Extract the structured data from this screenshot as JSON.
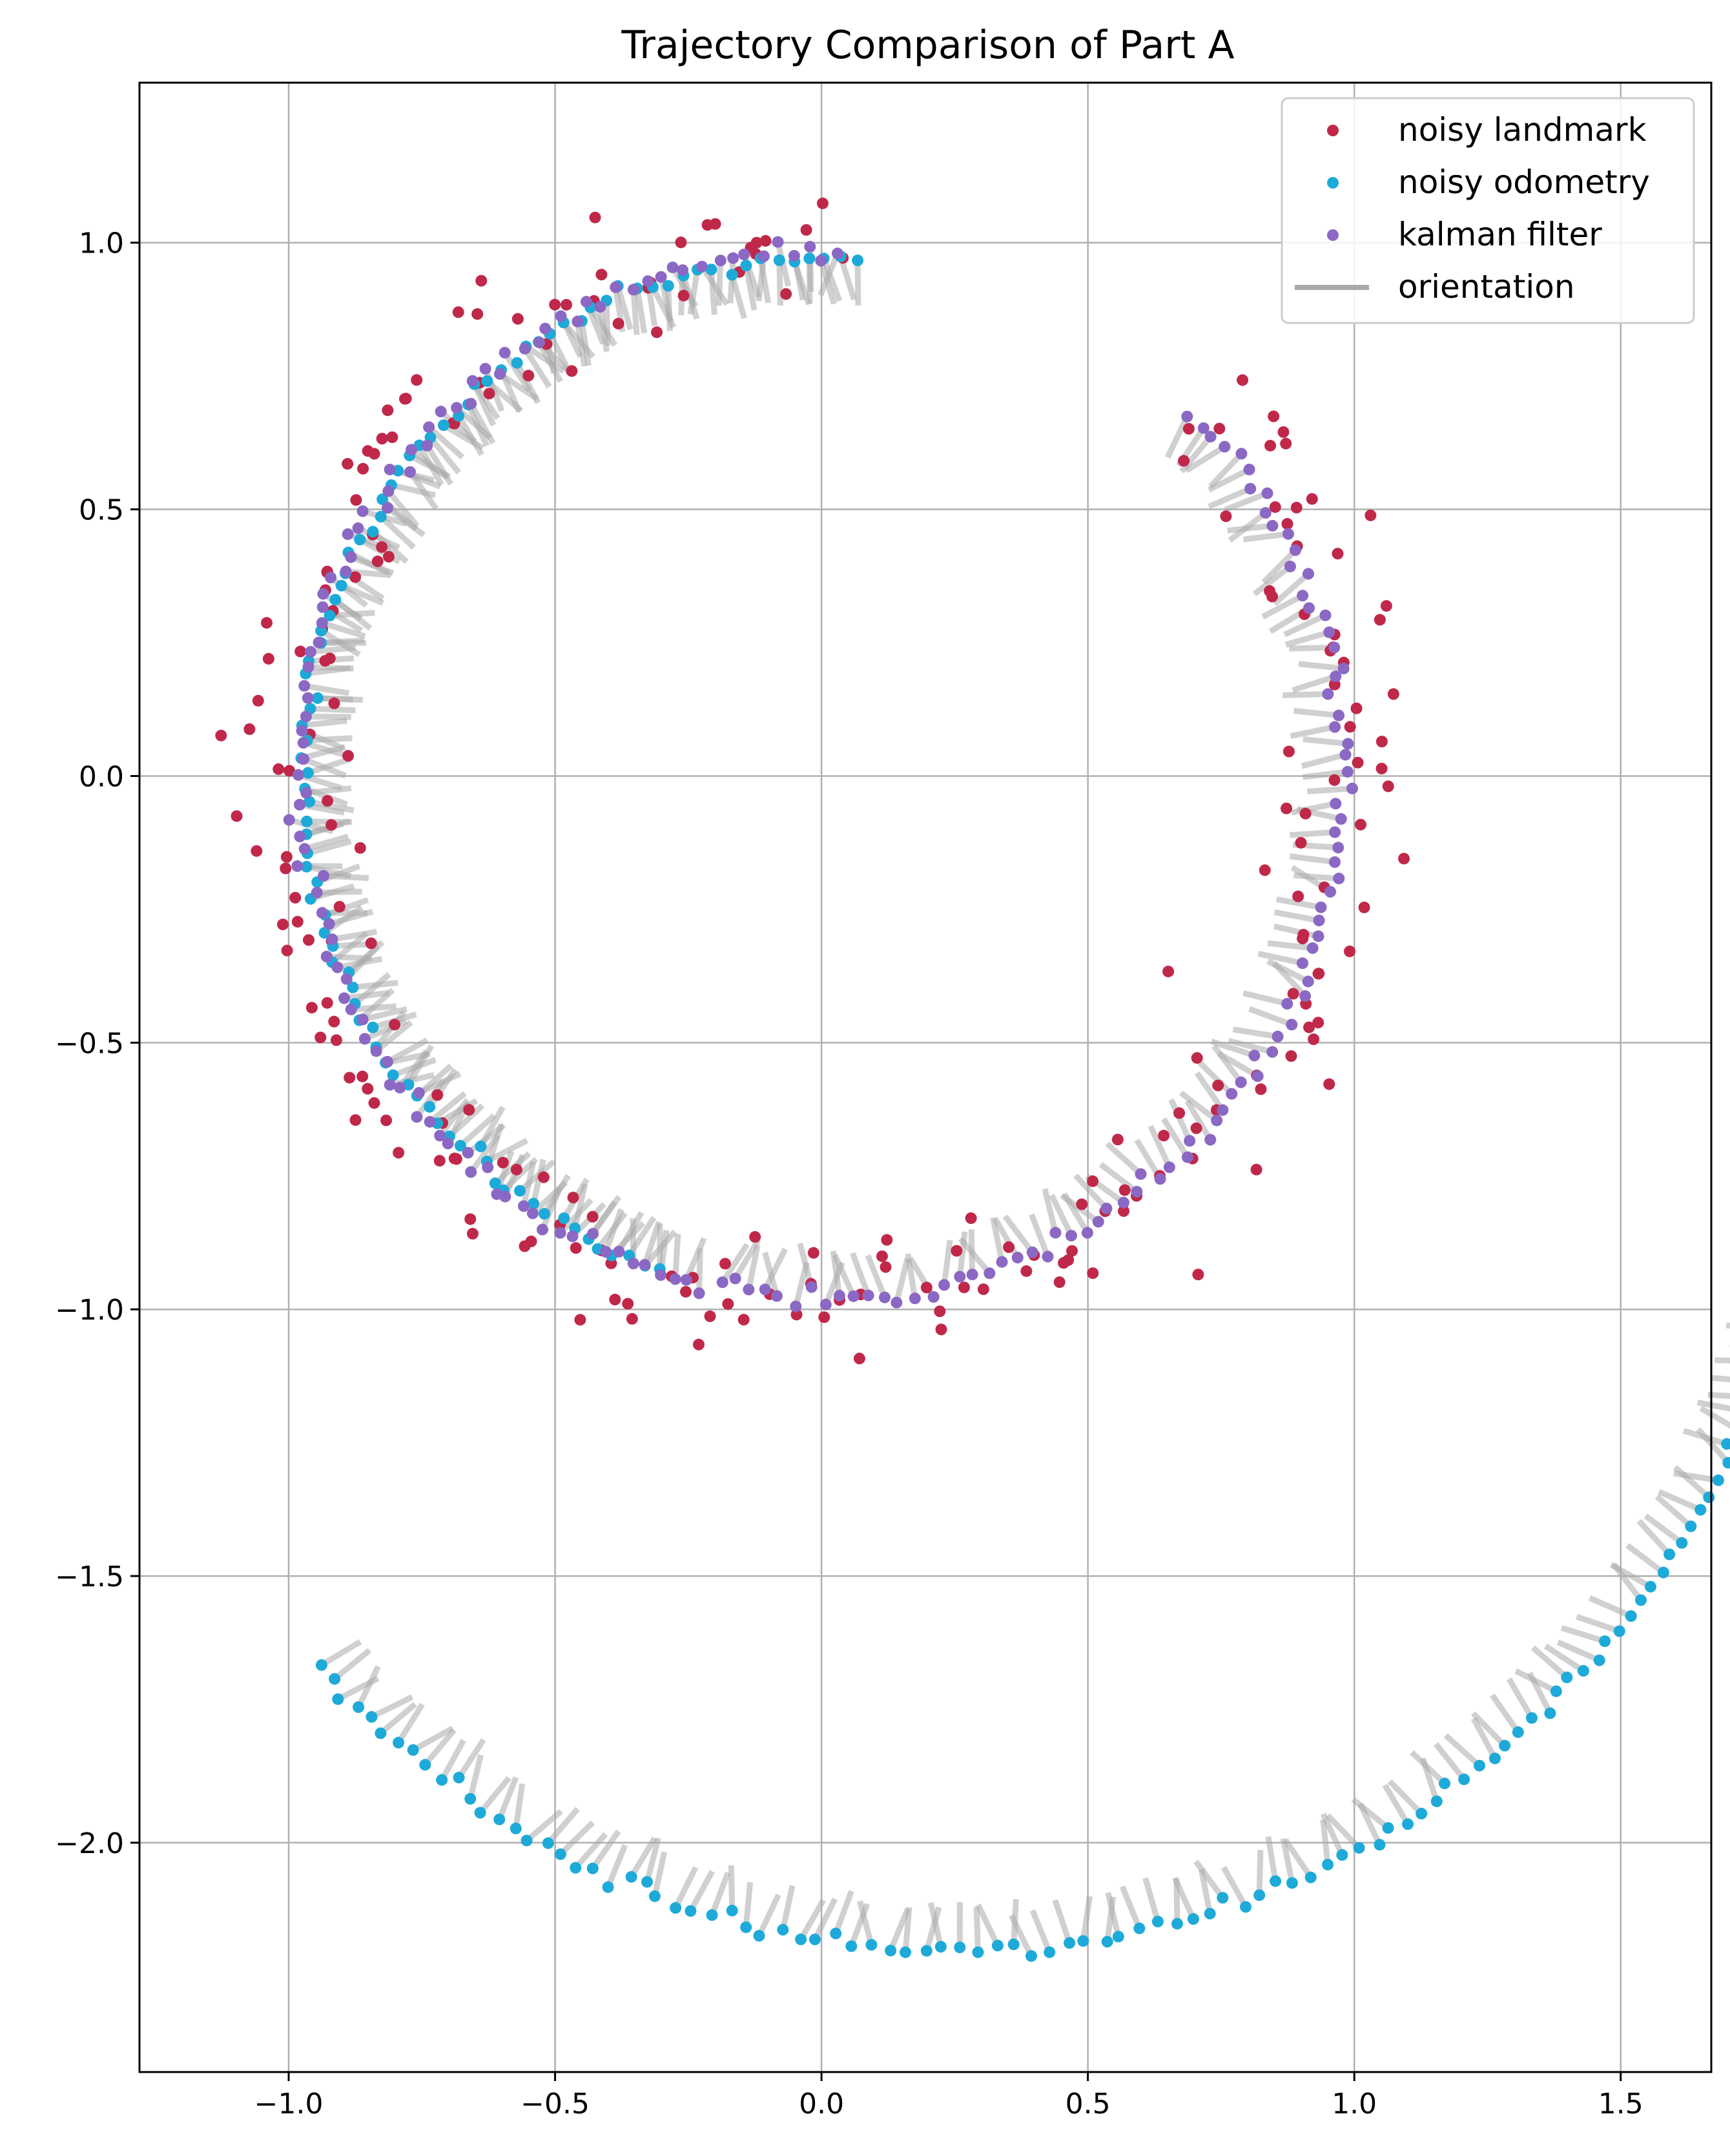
{
  "chart_data": {
    "type": "scatter",
    "title": "Trajectory Comparison of Part A",
    "xlabel": "",
    "ylabel": "",
    "xlim": [
      -1.28,
      1.67
    ],
    "ylim": [
      -2.43,
      1.3
    ],
    "xticks": [
      -1.0,
      -0.5,
      0.0,
      0.5,
      1.0,
      1.5
    ],
    "xtick_labels": [
      "−1.0",
      "−0.5",
      "0.0",
      "0.5",
      "1.0",
      "1.5"
    ],
    "yticks": [
      1.0,
      0.5,
      0.0,
      -0.5,
      -1.0,
      -1.5,
      -2.0
    ],
    "ytick_labels": [
      "1.0",
      "0.5",
      "0.0",
      "−0.5",
      "−1.0",
      "−1.5",
      "−2.0"
    ],
    "grid": true,
    "legend_position": "top-right",
    "series": [
      {
        "name": "noisy landmark",
        "color": "#c0284a",
        "marker": "dot",
        "trajectory": {
          "description_of_points": "circle of radius ~1 centered (0,0), from (0.0,0.99) CCW to about (0.75,0.70), with noise",
          "center": [
            0.0,
            0.0
          ],
          "radius": 1.0,
          "start_angle_deg": 89,
          "end_angle_deg": 404,
          "count": 230,
          "noise": 0.06
        }
      },
      {
        "name": "noisy odometry",
        "color": "#1eaad8",
        "marker": "dot",
        "trajectory": {
          "segments": [
            {
              "center": [
                0.0,
                0.0
              ],
              "radius": 0.97,
              "start_angle_deg": 86,
              "end_angle_deg": 252,
              "count": 95
            },
            {
              "center": [
                0.25,
                -0.6
              ],
              "radius": 1.6,
              "start_angle_deg": 222,
              "end_angle_deg": 366,
              "count": 120
            }
          ],
          "noise": 0.008
        }
      },
      {
        "name": "kalman filter",
        "color": "#8b68c4",
        "marker": "dot",
        "trajectory": {
          "center": [
            0.0,
            0.0
          ],
          "radius": 0.98,
          "start_angle_deg": 88,
          "end_angle_deg": 404,
          "count": 190,
          "noise": 0.01
        }
      },
      {
        "name": "orientation",
        "color": "#a9a9a9",
        "marker": "line"
      }
    ]
  }
}
